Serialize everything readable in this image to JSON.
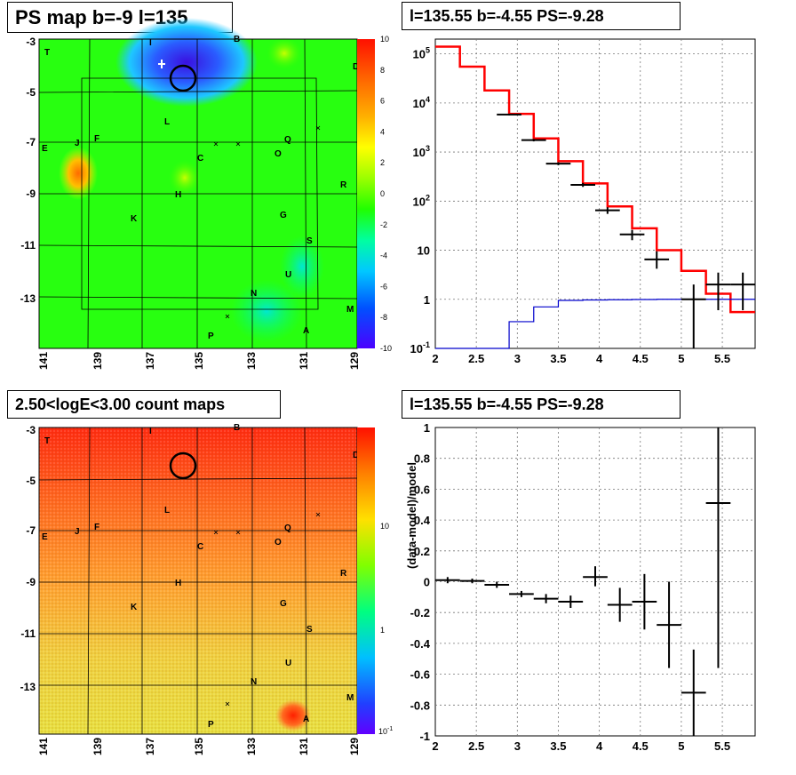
{
  "titles": {
    "ps_map": "PS map b=-9 l=135",
    "spectrum": "l=135.55 b=-4.55 PS=-9.28",
    "count_map": "2.50<logE<3.00 count maps",
    "residual": "l=135.55 b=-4.55 PS=-9.28"
  },
  "maps": {
    "y_ticks": [
      "-3",
      "-5",
      "-7",
      "-9",
      "-11",
      "-13"
    ],
    "x_ticks": [
      "141",
      "139",
      "137",
      "135",
      "133",
      "131",
      "129"
    ],
    "source_labels": [
      "T",
      "I",
      "B",
      "D",
      "L",
      "J",
      "F",
      "E",
      "Q",
      "O",
      "C",
      "R",
      "H",
      "K",
      "G",
      "S",
      "U",
      "N",
      "M",
      "P",
      "A"
    ]
  },
  "ps_colorbar": {
    "labels": [
      "10",
      "8",
      "6",
      "4",
      "2",
      "0",
      "-2",
      "-4",
      "-6",
      "-8",
      "-10"
    ],
    "stops": [
      "#4b00ff",
      "#0050ff",
      "#00c8ff",
      "#00ffa0",
      "#20ff00",
      "#9bff00",
      "#ffff00",
      "#ffb000",
      "#ff6000",
      "#ff1000"
    ]
  },
  "count_colorbar": {
    "labels": [
      "10",
      "1"
    ],
    "sub_label_base": "10",
    "sub_label_exp": "-1"
  },
  "chart_data": [
    {
      "type": "line",
      "name": "spectrum",
      "xlim": [
        2,
        5.9
      ],
      "ylim": [
        0.1,
        200000
      ],
      "yscale": "log",
      "x_ticks": [
        "2",
        "2.5",
        "3",
        "3.5",
        "4",
        "4.5",
        "5",
        "5.5"
      ],
      "y_ticks": [
        {
          "base": "10",
          "exp": "-1"
        },
        {
          "base": "1",
          "exp": ""
        },
        {
          "base": "10",
          "exp": ""
        },
        {
          "base": "10",
          "exp": "2"
        },
        {
          "base": "10",
          "exp": "3"
        },
        {
          "base": "10",
          "exp": "4"
        },
        {
          "base": "10",
          "exp": "5"
        }
      ],
      "grid": true,
      "series": [
        {
          "x": [
            2.0,
            2.3,
            2.6,
            2.9,
            3.2,
            3.5,
            3.8,
            4.1,
            4.4,
            4.7,
            5.0,
            5.3,
            5.6
          ],
          "x_end": 5.9,
          "values": [
            140000,
            55000,
            18000,
            6000,
            1900,
            650,
            230,
            78,
            28,
            10,
            3.8,
            1.3,
            0.55
          ],
          "color": "#ff0000"
        },
        {
          "x": [
            2.0,
            2.3,
            2.6,
            2.9,
            3.2,
            3.5,
            3.8,
            4.1,
            4.4,
            4.7,
            5.0,
            5.3,
            5.6
          ],
          "x_end": 5.9,
          "values": [
            0.05,
            0.05,
            0.05,
            0.35,
            0.7,
            0.95,
            0.97,
            0.98,
            0.99,
            1.0,
            1.0,
            1.0,
            1.0
          ],
          "color": "#0000cc"
        }
      ],
      "points": [
        {
          "x": 2.9,
          "xerr": 0.15,
          "y": 5800,
          "ylo": 5600,
          "yhi": 6000
        },
        {
          "x": 3.2,
          "xerr": 0.15,
          "y": 1750,
          "ylo": 1650,
          "yhi": 1850
        },
        {
          "x": 3.5,
          "xerr": 0.15,
          "y": 580,
          "ylo": 540,
          "yhi": 620
        },
        {
          "x": 3.8,
          "xerr": 0.15,
          "y": 215,
          "ylo": 195,
          "yhi": 235
        },
        {
          "x": 4.1,
          "xerr": 0.15,
          "y": 65,
          "ylo": 55,
          "yhi": 75
        },
        {
          "x": 4.4,
          "xerr": 0.15,
          "y": 21,
          "ylo": 16,
          "yhi": 26
        },
        {
          "x": 4.7,
          "xerr": 0.15,
          "y": 6.5,
          "ylo": 4.2,
          "yhi": 9.5
        },
        {
          "x": 5.15,
          "xerr": 0.15,
          "y": 1.0,
          "ylo": 0.1,
          "yhi": 2.0
        },
        {
          "x": 5.45,
          "xerr": 0.15,
          "y": 2.0,
          "ylo": 0.6,
          "yhi": 3.5
        },
        {
          "x": 5.75,
          "xerr": 0.15,
          "y": 2.0,
          "ylo": 0.6,
          "yhi": 3.5
        }
      ]
    },
    {
      "type": "scatter",
      "name": "residual",
      "ylabel": "(data-model)/model",
      "xlim": [
        2,
        5.9
      ],
      "ylim": [
        -1,
        1
      ],
      "x_ticks": [
        "2",
        "2.5",
        "3",
        "3.5",
        "4",
        "4.5",
        "5",
        "5.5"
      ],
      "y_ticks": [
        "1",
        "0.8",
        "0.6",
        "0.4",
        "0.2",
        "0",
        "-0.2",
        "-0.4",
        "-0.6",
        "-0.8",
        "-1"
      ],
      "grid": true,
      "points": [
        {
          "x": 2.15,
          "xerr": 0.15,
          "y": 0.01,
          "ylo": -0.01,
          "yhi": 0.03
        },
        {
          "x": 2.45,
          "xerr": 0.15,
          "y": 0.005,
          "ylo": -0.01,
          "yhi": 0.02
        },
        {
          "x": 2.75,
          "xerr": 0.15,
          "y": -0.02,
          "ylo": -0.04,
          "yhi": 0.0
        },
        {
          "x": 3.05,
          "xerr": 0.15,
          "y": -0.08,
          "ylo": -0.1,
          "yhi": -0.06
        },
        {
          "x": 3.35,
          "xerr": 0.15,
          "y": -0.11,
          "ylo": -0.14,
          "yhi": -0.08
        },
        {
          "x": 3.65,
          "xerr": 0.15,
          "y": -0.13,
          "ylo": -0.17,
          "yhi": -0.09
        },
        {
          "x": 3.95,
          "xerr": 0.15,
          "y": 0.03,
          "ylo": -0.03,
          "yhi": 0.1
        },
        {
          "x": 4.25,
          "xerr": 0.15,
          "y": -0.15,
          "ylo": -0.26,
          "yhi": -0.04
        },
        {
          "x": 4.55,
          "xerr": 0.15,
          "y": -0.13,
          "ylo": -0.31,
          "yhi": 0.05
        },
        {
          "x": 4.85,
          "xerr": 0.15,
          "y": -0.28,
          "ylo": -0.56,
          "yhi": 0.0
        },
        {
          "x": 5.15,
          "xerr": 0.15,
          "y": -0.72,
          "ylo": -1.0,
          "yhi": -0.44
        },
        {
          "x": 5.45,
          "xerr": 0.15,
          "y": 0.51,
          "ylo": -0.56,
          "yhi": 1.0
        }
      ]
    }
  ]
}
